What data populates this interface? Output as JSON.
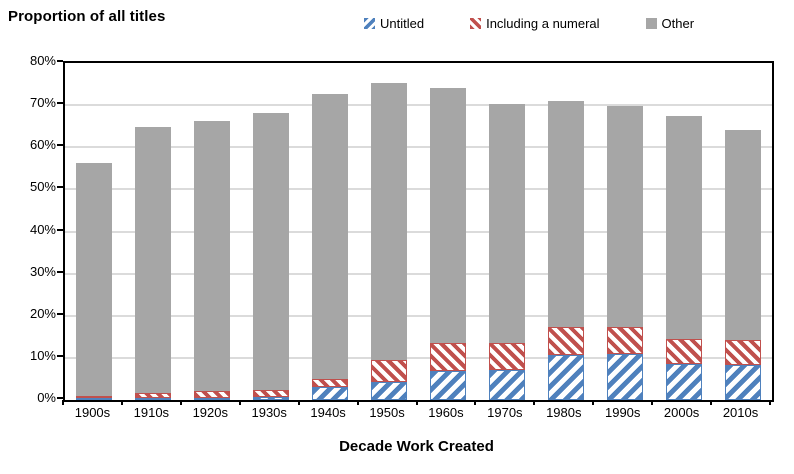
{
  "chart_data": {
    "type": "bar",
    "subtype": "stacked",
    "title": "Proportion of all titles",
    "xlabel": "Decade Work Created",
    "ylabel": "",
    "ylim": [
      0,
      80
    ],
    "ytick_step": 10,
    "ytick_suffix": "%",
    "grid": true,
    "legend_position": "top",
    "categories": [
      "1900s",
      "1910s",
      "1920s",
      "1930s",
      "1940s",
      "1950s",
      "1960s",
      "1970s",
      "1980s",
      "1990s",
      "2000s",
      "2010s"
    ],
    "series": [
      {
        "name": "Untitled",
        "color": "#4F81BD",
        "pattern": "diagonal-up",
        "values": [
          0.2,
          0.4,
          0.5,
          0.7,
          3.2,
          4.4,
          6.9,
          7.2,
          10.6,
          10.9,
          8.6,
          8.3
        ]
      },
      {
        "name": "Including a numeral",
        "color": "#C0504D",
        "pattern": "diagonal-down",
        "values": [
          0.5,
          1.3,
          1.6,
          1.6,
          1.9,
          5.0,
          6.6,
          6.3,
          6.7,
          6.5,
          6.0,
          6.0
        ]
      },
      {
        "name": "Other",
        "color": "#A6A6A6",
        "pattern": "solid",
        "values": [
          55.4,
          63.1,
          64.1,
          65.8,
          67.5,
          65.9,
          60.6,
          56.7,
          53.7,
          52.4,
          52.8,
          49.7
        ]
      }
    ]
  },
  "colors": {
    "gridline": "#DBDBDB",
    "axis": "#000000",
    "background": "#FFFFFF"
  }
}
